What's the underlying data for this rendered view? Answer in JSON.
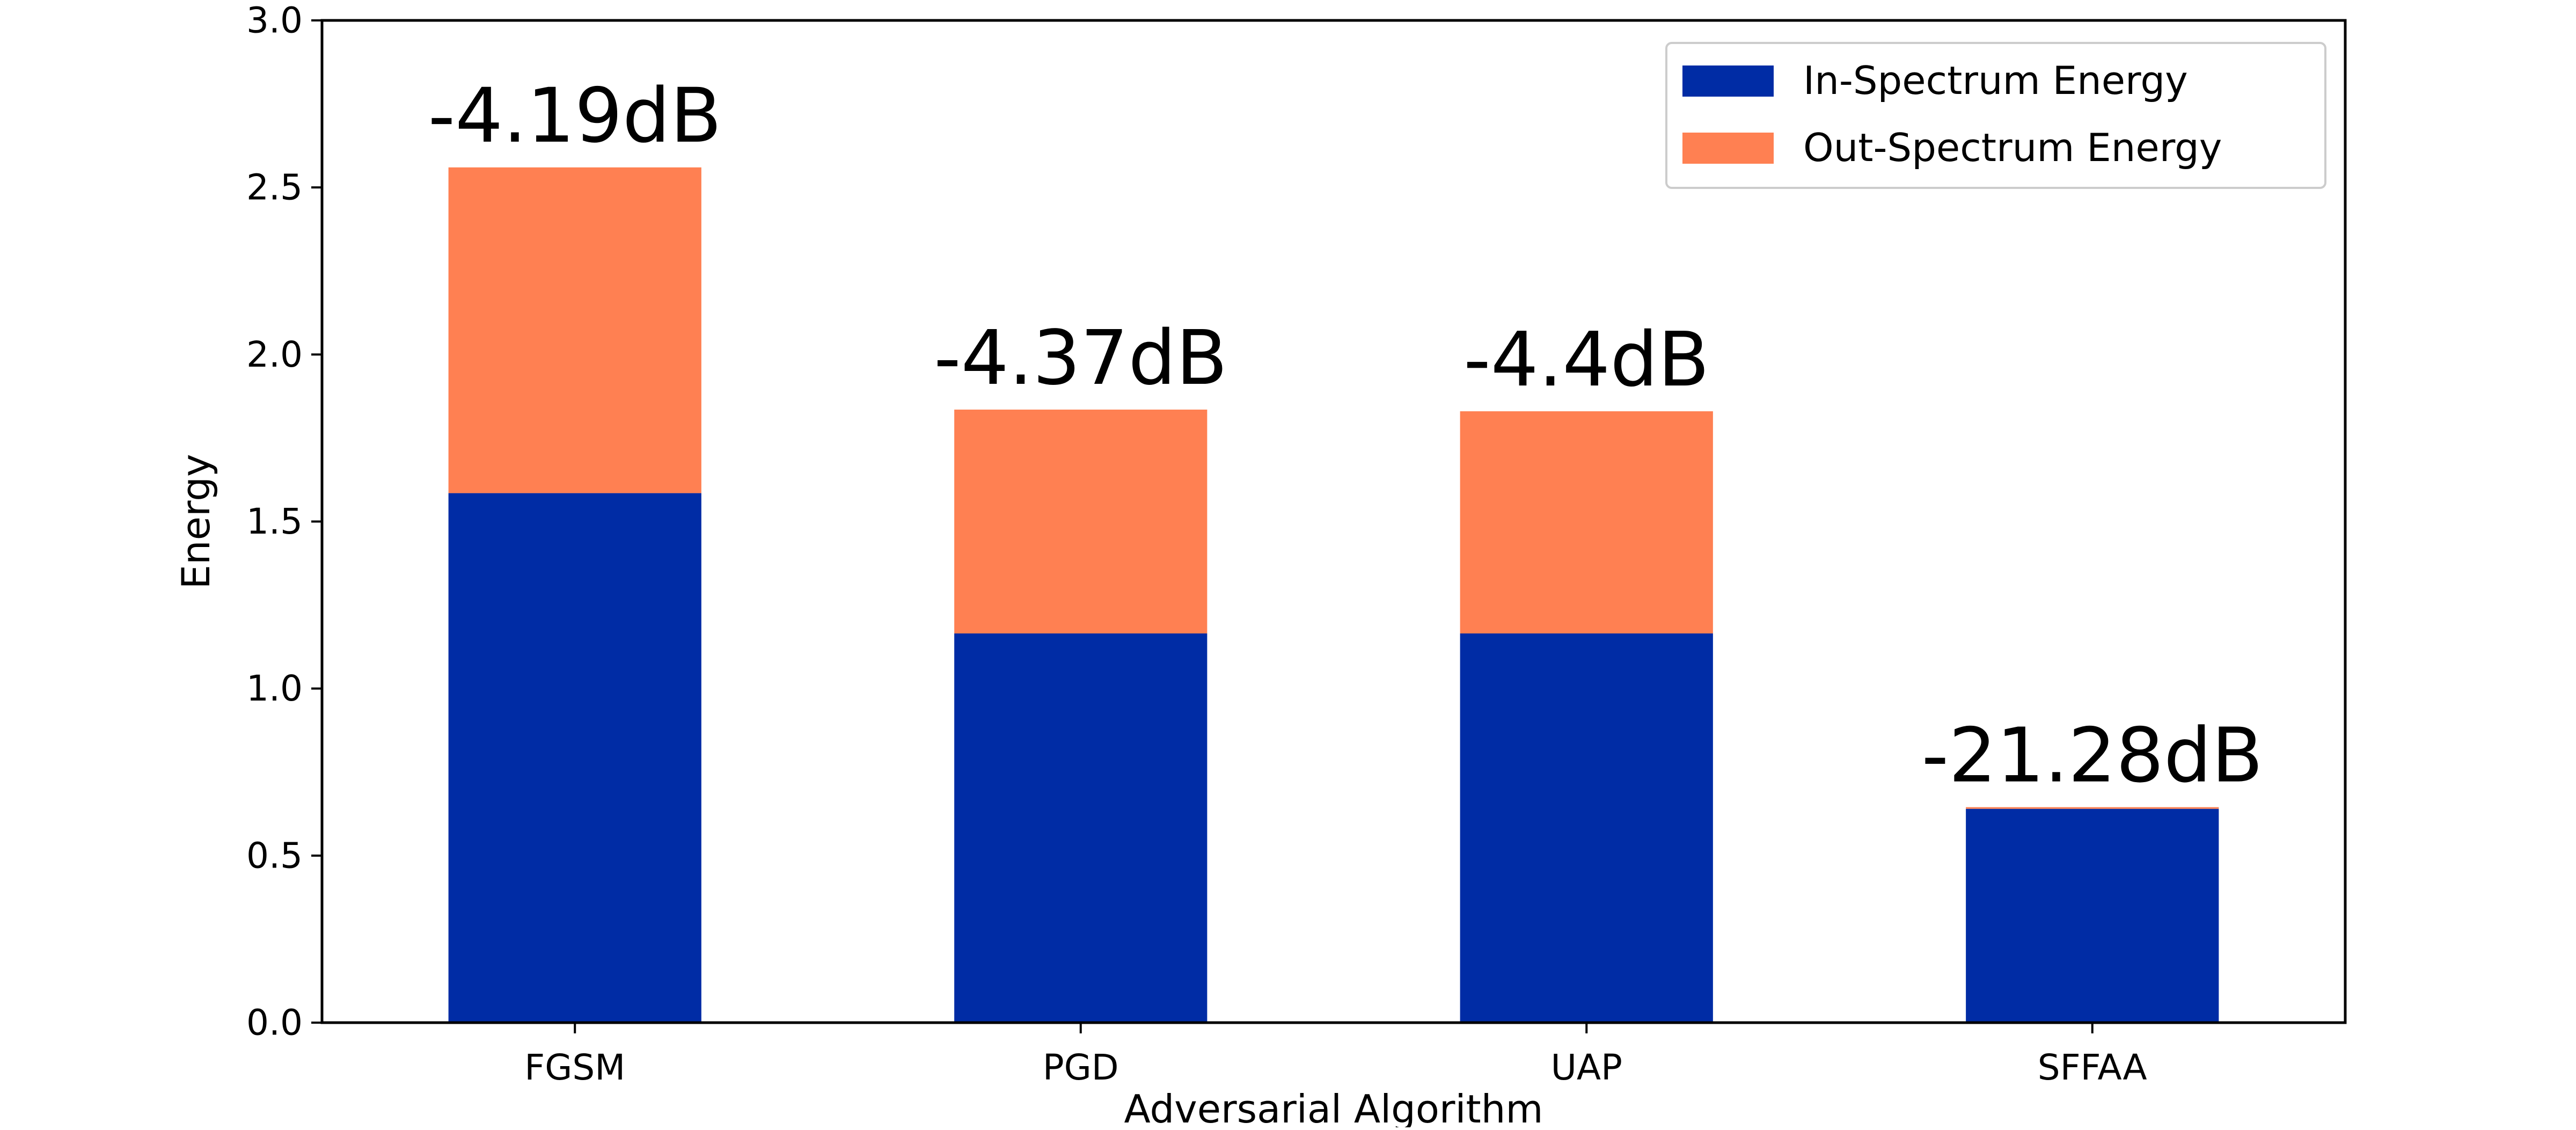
{
  "chart_data": {
    "type": "bar",
    "stacked": true,
    "title": "",
    "xlabel": "Adversarial Algorithm",
    "ylabel": "Energy",
    "ylim": [
      0,
      3.0
    ],
    "yticks": [
      0.0,
      0.5,
      1.0,
      1.5,
      2.0,
      2.5,
      3.0
    ],
    "ytick_labels": [
      "0.0",
      "0.5",
      "1.0",
      "1.5",
      "2.0",
      "2.5",
      "3.0"
    ],
    "categories": [
      "FGSM",
      "PGD",
      "UAP",
      "SFFAA"
    ],
    "series": [
      {
        "name": "In-Spectrum Energy",
        "color": "#002ca5",
        "values": [
          1.585,
          1.165,
          1.165,
          0.64
        ]
      },
      {
        "name": "Out-Spectrum Energy",
        "color": "#ff8052",
        "values": [
          0.975,
          0.67,
          0.665,
          0.005
        ]
      }
    ],
    "annotations": [
      "-4.19dB",
      "-4.37dB",
      "-4.4dB",
      "-21.28dB"
    ],
    "legend_position": "top-right",
    "grid": false
  }
}
